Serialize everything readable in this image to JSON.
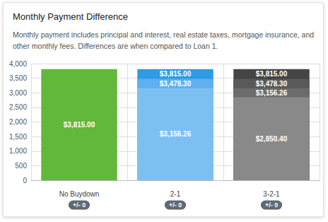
{
  "chart_data": {
    "type": "bar",
    "title": "Monthly Payment Difference",
    "subtitle": "Monthly payment includes principal and interest, real estate taxes, mortgage insurance, and other monthly fees. Differences are when compared to Loan 1.",
    "categories": [
      "No Buydown",
      "2-1",
      "3-2-1"
    ],
    "annotations": [
      "+/- 0",
      "+/- 0",
      "+/- 0"
    ],
    "series": [
      {
        "values": [
          3815.0,
          3815.0,
          3815.0
        ],
        "value_labels": [
          "$3,815.00",
          "$3,815.00",
          "$3,815.00"
        ],
        "colors": [
          "#62b83a",
          "#2e9be6",
          "#444444"
        ]
      },
      {
        "values": [
          null,
          3478.3,
          3478.3
        ],
        "value_labels": [
          null,
          "$3,478.30",
          "$3,478.30"
        ],
        "colors": [
          null,
          "#5eb0ee",
          "#595959"
        ]
      },
      {
        "values": [
          null,
          3156.26,
          3156.26
        ],
        "value_labels": [
          null,
          "$3,156.26",
          "$3,156.26"
        ],
        "colors": [
          null,
          "#7cc0f2",
          "#6c6c6c"
        ]
      },
      {
        "values": [
          null,
          null,
          2850.4
        ],
        "value_labels": [
          null,
          null,
          "$2,850.40"
        ],
        "colors": [
          null,
          null,
          "#898989"
        ]
      }
    ],
    "ylim": [
      0,
      4000
    ],
    "yticks": [
      0,
      500,
      {
        "value": 1000,
        "label": "1,000"
      },
      {
        "value": 1500,
        "label": "1,500"
      },
      {
        "value": 2000,
        "label": "2,000"
      },
      {
        "value": 2500,
        "label": "2,500"
      },
      {
        "value": 3000,
        "label": "3,000"
      },
      {
        "value": 3500,
        "label": "3,500"
      },
      {
        "value": 4000,
        "label": "4,000"
      }
    ],
    "grid": true,
    "stacked": false,
    "data_labels": true
  }
}
